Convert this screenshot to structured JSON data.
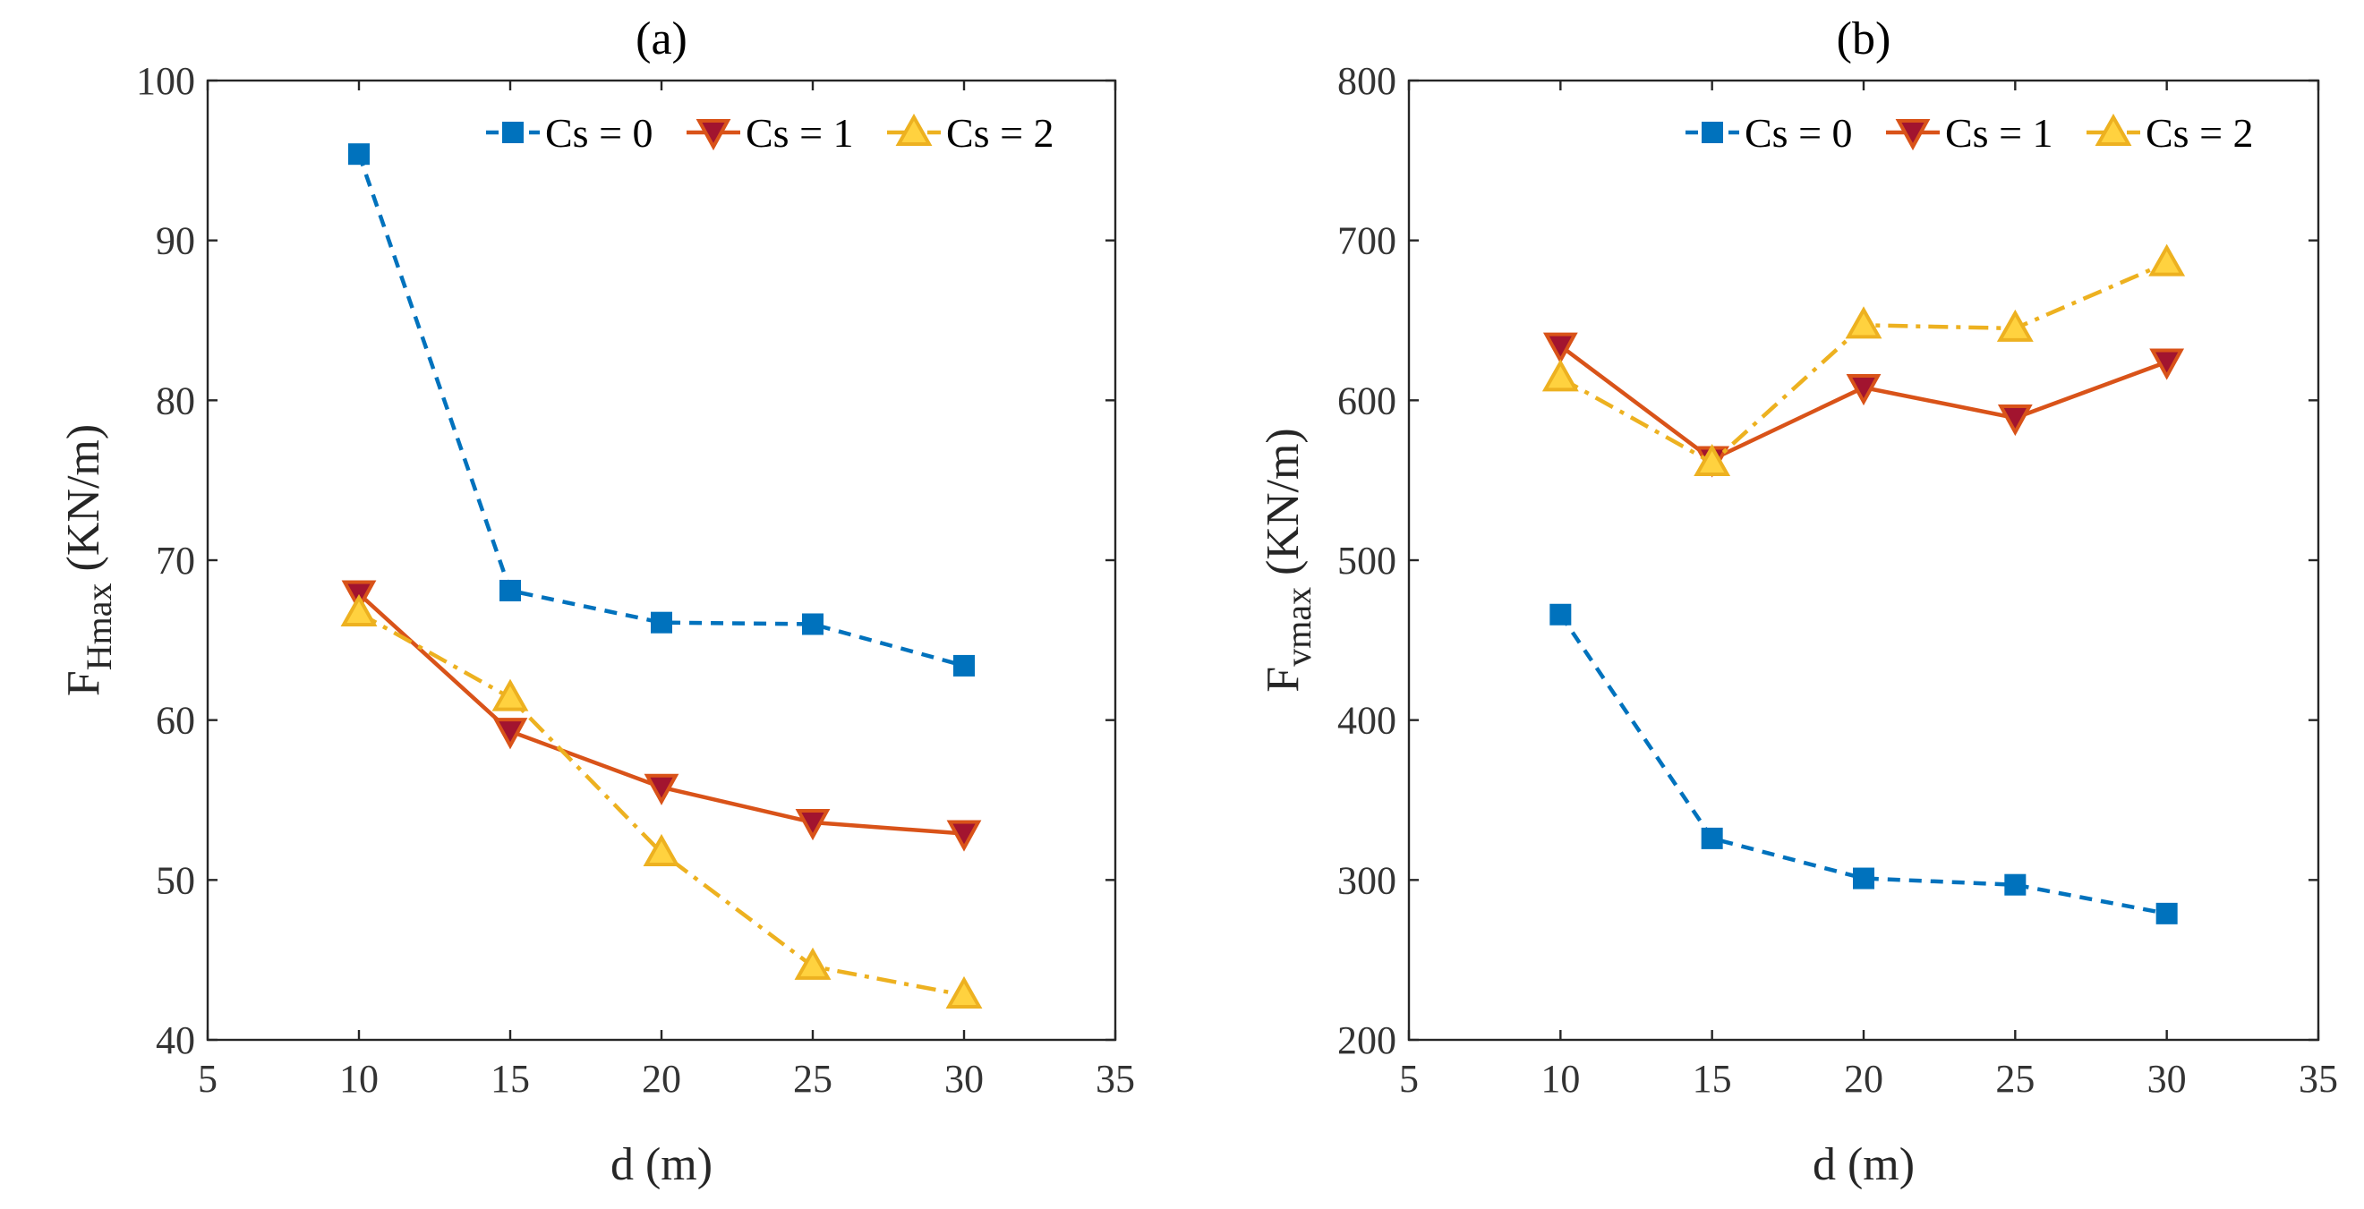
{
  "chart_data": [
    {
      "type": "line",
      "title": "(a)",
      "xlabel": "d (m)",
      "ylabel_main": "F",
      "ylabel_sub": "Hmax",
      "ylabel_unit": " (KN/m)",
      "xlim": [
        5,
        35
      ],
      "ylim": [
        40,
        100
      ],
      "xticks": [
        5,
        10,
        15,
        20,
        25,
        30,
        35
      ],
      "yticks": [
        40,
        50,
        60,
        70,
        80,
        90,
        100
      ],
      "x": [
        10,
        15,
        20,
        25,
        30
      ],
      "legend_position": "top-right",
      "series": [
        {
          "name": "Cs = 0",
          "values": [
            95.4,
            68.1,
            66.1,
            66.0,
            63.4
          ],
          "color": "#0072BD",
          "marker": "square",
          "line_style": "dashed"
        },
        {
          "name": "Cs = 1",
          "values": [
            67.9,
            59.3,
            55.8,
            53.6,
            52.9
          ],
          "color": "#D95319",
          "marker": "triangle-down",
          "line_style": "solid"
        },
        {
          "name": "Cs = 2",
          "values": [
            66.7,
            61.4,
            51.7,
            44.6,
            42.8
          ],
          "color": "#EDB120",
          "marker": "triangle-up",
          "line_style": "dashdot"
        }
      ]
    },
    {
      "type": "line",
      "title": "(b)",
      "xlabel": "d (m)",
      "ylabel_main": "F",
      "ylabel_sub": "vmax",
      "ylabel_unit": " (KN/m)",
      "xlim": [
        5,
        35
      ],
      "ylim": [
        200,
        800
      ],
      "xticks": [
        5,
        10,
        15,
        20,
        25,
        30,
        35
      ],
      "yticks": [
        200,
        300,
        400,
        500,
        600,
        700,
        800
      ],
      "x": [
        10,
        15,
        20,
        25,
        30
      ],
      "legend_position": "top-right",
      "series": [
        {
          "name": "Cs = 0",
          "values": [
            466,
            326,
            301,
            297,
            279
          ],
          "color": "#0072BD",
          "marker": "square",
          "line_style": "dashed"
        },
        {
          "name": "Cs = 1",
          "values": [
            634,
            563,
            608,
            589,
            624
          ],
          "color": "#D95319",
          "marker": "triangle-down",
          "line_style": "solid"
        },
        {
          "name": "Cs = 2",
          "values": [
            614,
            561,
            647,
            645,
            686
          ],
          "color": "#EDB120",
          "marker": "triangle-up",
          "line_style": "dashdot"
        }
      ]
    }
  ]
}
